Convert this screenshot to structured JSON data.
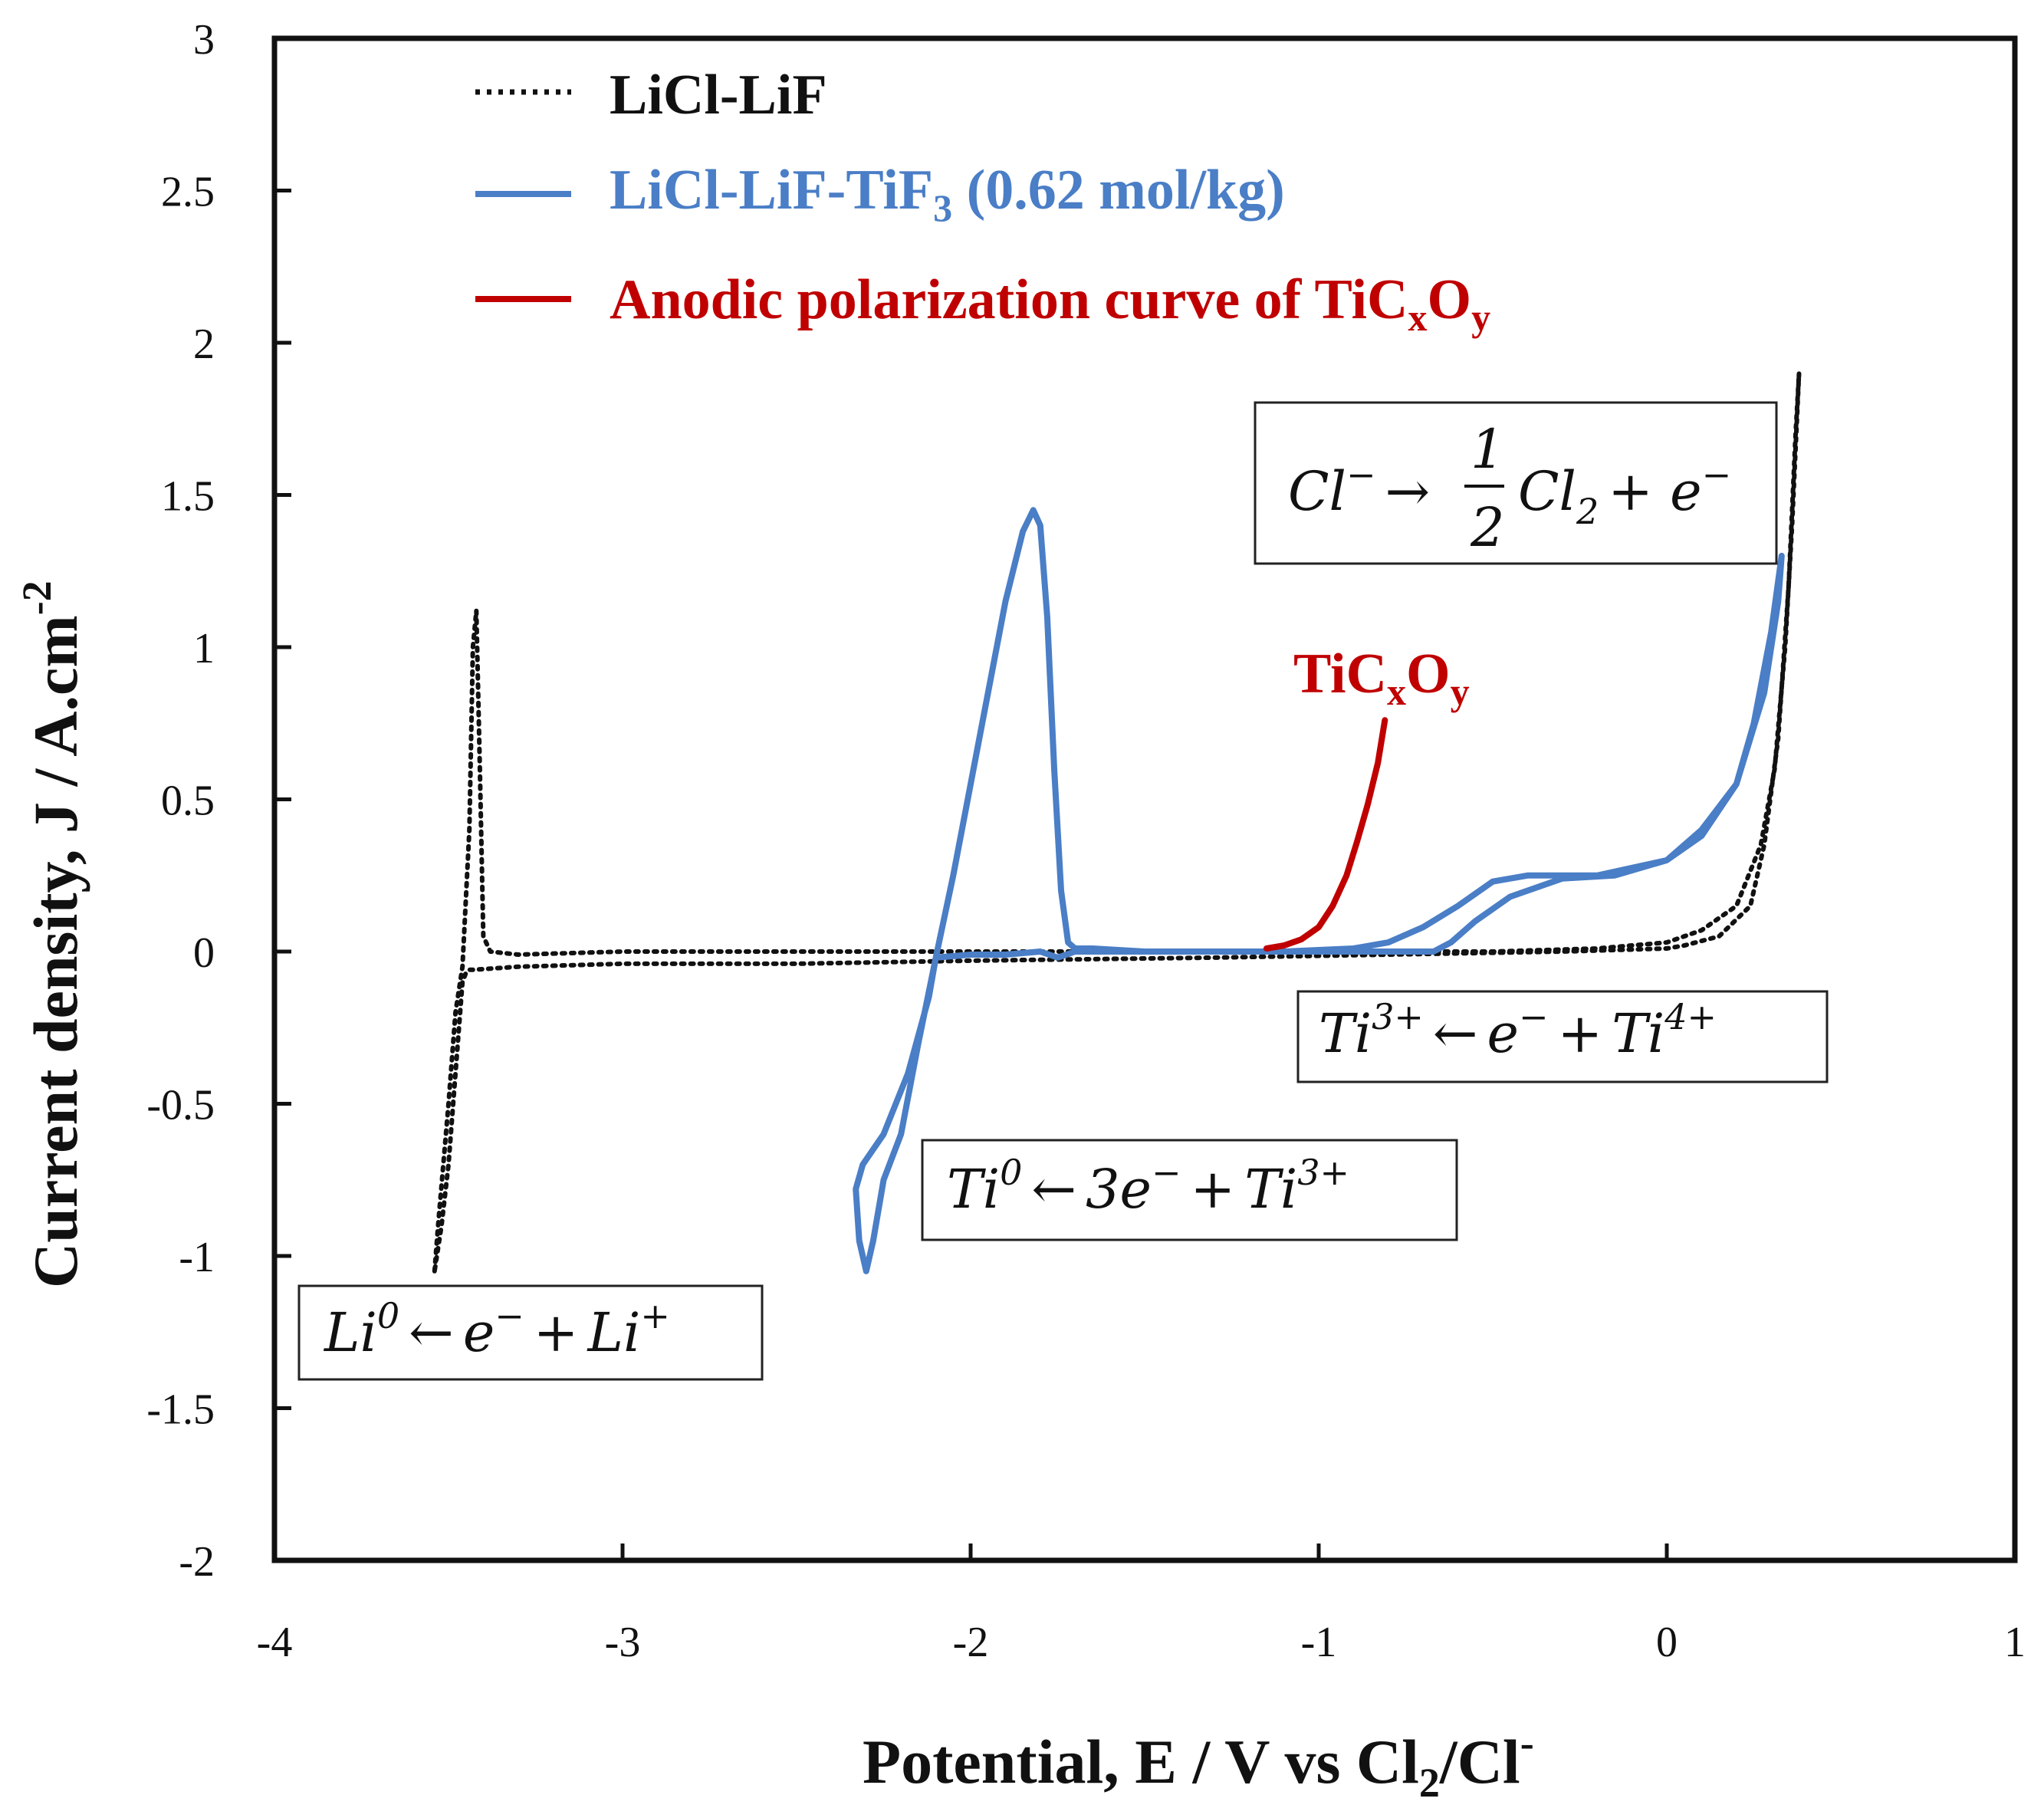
{
  "chart_data": {
    "type": "line",
    "xlabel": "Potential, E / V vs Cl",
    "xlabel_sub": "2",
    "xlabel_tail": "/Cl",
    "xlabel_sup": "-",
    "ylabel": "Current density, J / A.cm",
    "ylabel_sup": "-2",
    "xlim": [
      -4,
      1
    ],
    "ylim": [
      -2,
      3
    ],
    "xticks": [
      "-4",
      "-3",
      "-2",
      "-1",
      "0",
      "1"
    ],
    "yticks": [
      "3",
      "2.5",
      "2",
      "1.5",
      "1",
      "0.5",
      "0",
      "-0.5",
      "-1",
      "-1.5",
      "-2"
    ],
    "legend": [
      {
        "label": "LiCl-LiF",
        "style": "dotted",
        "color": "#111111"
      },
      {
        "label": "LiCl-LiF-TiF",
        "sub": "3",
        "tail": " (0.62 mol/kg)",
        "style": "solid",
        "color": "#4a7ec6"
      },
      {
        "label": "Anodic polarization curve of TiC",
        "sub": "x",
        "mid": "O",
        "sub2": "y",
        "style": "solid",
        "color": "#c00000"
      }
    ],
    "series": [
      {
        "name": "LiCl-LiF",
        "color": "#111111",
        "style": "dotted",
        "x": [
          -3.54,
          -3.53,
          -3.5,
          -3.48,
          -3.46,
          -3.44,
          -3.43,
          -3.42,
          -3.41,
          -3.4,
          -3.38,
          -3.3,
          -3.0,
          -2.5,
          -2.0,
          -1.5,
          -1.0,
          -0.5,
          -0.2,
          0.0,
          0.1,
          0.2,
          0.27,
          0.31,
          0.34,
          0.36,
          0.38,
          0.37,
          0.35,
          0.32,
          0.28,
          0.24,
          0.15,
          0.05,
          0.0,
          -0.3,
          -0.8,
          -1.3,
          -2.0,
          -2.5,
          -3.0,
          -3.3,
          -3.43,
          -3.44,
          -3.45,
          -3.46,
          -3.48,
          -3.5,
          -3.52,
          -3.54
        ],
        "y": [
          -1.05,
          -0.9,
          -0.5,
          -0.2,
          -0.05,
          0.4,
          1.0,
          1.12,
          0.6,
          0.05,
          0.0,
          -0.01,
          -0.0,
          0.0,
          0.0,
          0.0,
          0.0,
          0.0,
          0.01,
          0.03,
          0.07,
          0.15,
          0.35,
          0.6,
          1.0,
          1.4,
          1.9,
          1.7,
          1.2,
          0.7,
          0.35,
          0.15,
          0.05,
          0.02,
          0.01,
          0.0,
          -0.01,
          -0.02,
          -0.03,
          -0.04,
          -0.04,
          -0.05,
          -0.06,
          -0.06,
          -0.07,
          -0.1,
          -0.4,
          -0.7,
          -0.9,
          -1.05
        ]
      },
      {
        "name": "LiCl-LiF-TiF3 (0.62 mol/kg)",
        "color": "#4a7ec6",
        "style": "solid",
        "x": [
          -2.1,
          -2.05,
          -2.0,
          -1.95,
          -1.9,
          -1.85,
          -1.82,
          -1.8,
          -1.78,
          -1.76,
          -1.74,
          -1.72,
          -1.7,
          -1.65,
          -1.5,
          -1.3,
          -1.1,
          -0.9,
          -0.8,
          -0.7,
          -0.6,
          -0.5,
          -0.4,
          -0.2,
          0.0,
          0.1,
          0.2,
          0.25,
          0.3,
          0.33,
          0.32,
          0.28,
          0.2,
          0.1,
          0.0,
          -0.15,
          -0.3,
          -0.45,
          -0.55,
          -0.62,
          -0.67,
          -0.75,
          -0.9,
          -1.1,
          -1.3,
          -1.5,
          -1.7,
          -1.75,
          -1.8,
          -1.9,
          -2.0,
          -2.1,
          -2.15,
          -2.2,
          -2.25,
          -2.28,
          -2.3,
          -2.32,
          -2.33,
          -2.31,
          -2.25,
          -2.18,
          -2.12,
          -2.1
        ],
        "y": [
          -0.02,
          0.25,
          0.55,
          0.85,
          1.15,
          1.38,
          1.45,
          1.4,
          1.1,
          0.6,
          0.2,
          0.03,
          0.01,
          0.01,
          0.0,
          0.0,
          0.0,
          0.01,
          0.03,
          0.08,
          0.15,
          0.23,
          0.25,
          0.25,
          0.3,
          0.38,
          0.55,
          0.75,
          1.05,
          1.3,
          1.15,
          0.85,
          0.55,
          0.4,
          0.3,
          0.25,
          0.24,
          0.18,
          0.1,
          0.03,
          0.0,
          0.0,
          0.0,
          0.0,
          0.0,
          0.0,
          0.0,
          -0.02,
          0.0,
          -0.01,
          -0.01,
          -0.02,
          -0.3,
          -0.6,
          -0.75,
          -0.95,
          -1.05,
          -0.95,
          -0.78,
          -0.7,
          -0.6,
          -0.4,
          -0.15,
          -0.02
        ]
      },
      {
        "name": "Anodic polarization curve of TiCxOy",
        "color": "#c00000",
        "style": "solid",
        "x": [
          -1.15,
          -1.1,
          -1.05,
          -1.0,
          -0.96,
          -0.92,
          -0.89,
          -0.86,
          -0.83,
          -0.81
        ],
        "y": [
          0.01,
          0.02,
          0.04,
          0.08,
          0.15,
          0.25,
          0.36,
          0.48,
          0.62,
          0.76
        ]
      }
    ],
    "annotations": {
      "cl": {
        "lhs": "Cl",
        "lhs_sup": "−",
        "arrow": "→",
        "num": "1",
        "den": "2",
        "rhs": "Cl",
        "rhs_sub": "2",
        "plus": "+ e",
        "plus_sup": "−"
      },
      "ti34": {
        "a": "Ti",
        "a_sup": "3+",
        "arrow": "←",
        "b": "e",
        "b_sup": "−",
        "plus": "+",
        "c": "Ti",
        "c_sup": "4+"
      },
      "ti0": {
        "a": "Ti",
        "a_sup": "0",
        "arrow": "←",
        "b": "3e",
        "b_sup": "−",
        "plus": "+",
        "c": "Ti",
        "c_sup": "3+"
      },
      "li": {
        "a": "Li",
        "a_sup": "0",
        "arrow": "←",
        "b": "e",
        "b_sup": "−",
        "plus": "+",
        "c": "Li",
        "c_sup": "+"
      },
      "tic": {
        "label": "TiC",
        "sub": "x",
        "mid": "O",
        "sub2": "y"
      }
    }
  }
}
